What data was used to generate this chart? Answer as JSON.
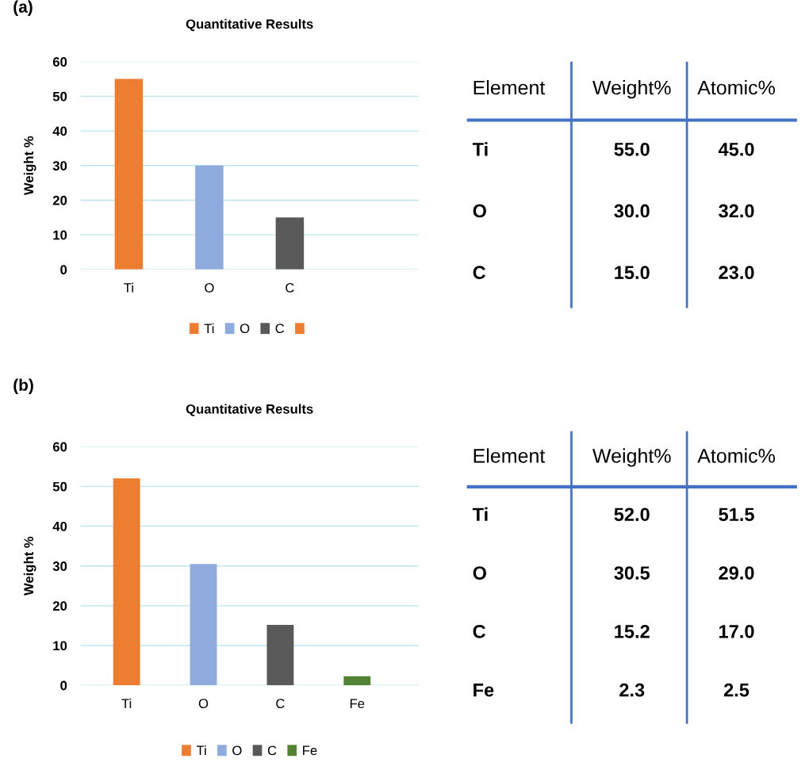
{
  "chart_data": [
    {
      "type": "bar",
      "title": "Quantitative Results",
      "ylabel": "Weight %",
      "annotations": [
        "(a)"
      ],
      "categories": [
        "Ti",
        "O",
        "C"
      ],
      "series": [
        {
          "name": "Ti",
          "color": "#ed7d31",
          "values": [
            55,
            null,
            null
          ]
        },
        {
          "name": "O",
          "color": "#8faadc",
          "values": [
            null,
            30,
            null
          ]
        },
        {
          "name": "C",
          "color": "#595959",
          "values": [
            null,
            null,
            15
          ]
        },
        {
          "color": "#ed7d31",
          "values": [
            null,
            null,
            null
          ]
        }
      ],
      "ylim": [
        0,
        60
      ],
      "yticks": [
        0,
        10,
        20,
        30,
        40,
        50,
        60
      ],
      "grid": "y",
      "legend": "bottom"
    },
    {
      "type": "other",
      "annotations": [
        "Element",
        "Weight%",
        "Atomic%",
        "Ti",
        "55.0",
        "45.0",
        "O",
        "30.0",
        "32.0",
        "C",
        "15.0",
        "23.0"
      ]
    },
    {
      "type": "bar",
      "title": "Quantitative Results",
      "ylabel": "Weight %",
      "annotations": [
        "(b)"
      ],
      "categories": [
        "Ti",
        "O",
        "C",
        "Fe"
      ],
      "series": [
        {
          "name": "Ti",
          "color": "#ed7d31",
          "values": [
            52,
            null,
            null,
            null
          ]
        },
        {
          "name": "O",
          "color": "#8faadc",
          "values": [
            null,
            30.5,
            null,
            null
          ]
        },
        {
          "name": "C",
          "color": "#595959",
          "values": [
            null,
            null,
            15.2,
            null
          ]
        },
        {
          "name": "Fe",
          "color": "#548235",
          "values": [
            null,
            null,
            null,
            2.3
          ]
        }
      ],
      "ylim": [
        0,
        60
      ],
      "yticks": [
        0,
        10,
        20,
        30,
        40,
        50,
        60
      ],
      "grid": "y",
      "legend": "bottom"
    },
    {
      "type": "other",
      "annotations": [
        "Element",
        "Weight%",
        "Atomic%",
        "Ti",
        "52.0",
        "51.5",
        "O",
        "30.5",
        "29.0",
        "C",
        "15.2",
        "17.0",
        "Fe",
        "2.3",
        "2.5"
      ]
    }
  ]
}
